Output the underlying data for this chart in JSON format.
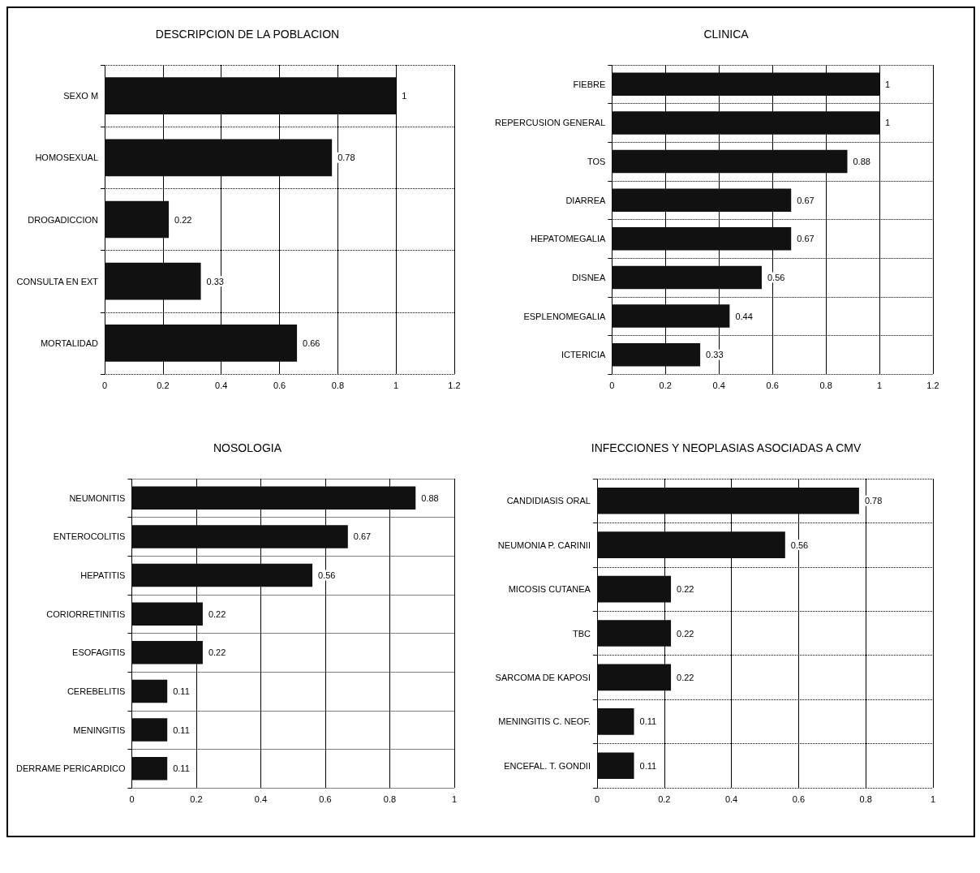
{
  "chart_data": [
    {
      "type": "bar",
      "orientation": "horizontal",
      "title": "DESCRIPCION DE LA POBLACION",
      "categories": [
        "SEXO M",
        "HOMOSEXUAL",
        "DROGADICCION",
        "CONSULTA EN EXT",
        "MORTALIDAD"
      ],
      "values": [
        1,
        0.78,
        0.22,
        0.33,
        0.66
      ],
      "color": "#111111",
      "xlim": [
        0,
        1.2
      ],
      "xticks": [
        0,
        0.2,
        0.4,
        0.6,
        0.8,
        1,
        1.2
      ],
      "grid": true,
      "data_labels": true
    },
    {
      "type": "bar",
      "orientation": "horizontal",
      "title": "CLINICA",
      "categories": [
        "FIEBRE",
        "REPERCUSION GENERAL",
        "TOS",
        "DIARREA",
        "HEPATOMEGALIA",
        "DISNEA",
        "ESPLENOMEGALIA",
        "ICTERICIA"
      ],
      "values": [
        1,
        1,
        0.88,
        0.67,
        0.67,
        0.56,
        0.44,
        0.33
      ],
      "color": "#111111",
      "xlim": [
        0,
        1.2
      ],
      "xticks": [
        0,
        0.2,
        0.4,
        0.6,
        0.8,
        1,
        1.2
      ],
      "grid": true,
      "data_labels": true
    },
    {
      "type": "bar",
      "orientation": "horizontal",
      "title": "NOSOLOGIA",
      "categories": [
        "NEUMONITIS",
        "ENTEROCOLITIS",
        "HEPATITIS",
        "CORIORRETINITIS",
        "ESOFAGITIS",
        "CEREBELITIS",
        "MENINGITIS",
        "DERRAME PERICARDICO"
      ],
      "values": [
        0.88,
        0.67,
        0.56,
        0.22,
        0.22,
        0.11,
        0.11,
        0.11
      ],
      "color": "#111111",
      "xlim": [
        0,
        1
      ],
      "xticks": [
        0,
        0.2,
        0.4,
        0.6,
        0.8,
        1
      ],
      "grid": true,
      "data_labels": true
    },
    {
      "type": "bar",
      "orientation": "horizontal",
      "title": "INFECCIONES Y NEOPLASIAS ASOCIADAS A CMV",
      "categories": [
        "CANDIDIASIS ORAL",
        "NEUMONIA P. CARINII",
        "MICOSIS CUTANEA",
        "TBC",
        "SARCOMA DE KAPOSI",
        "MENINGITIS C. NEOF.",
        "ENCEFAL. T. GONDII"
      ],
      "values": [
        0.78,
        0.56,
        0.22,
        0.22,
        0.22,
        0.11,
        0.11
      ],
      "color": "#111111",
      "xlim": [
        0,
        1
      ],
      "xticks": [
        0,
        0.2,
        0.4,
        0.6,
        0.8,
        1
      ],
      "grid": true,
      "data_labels": true
    }
  ]
}
